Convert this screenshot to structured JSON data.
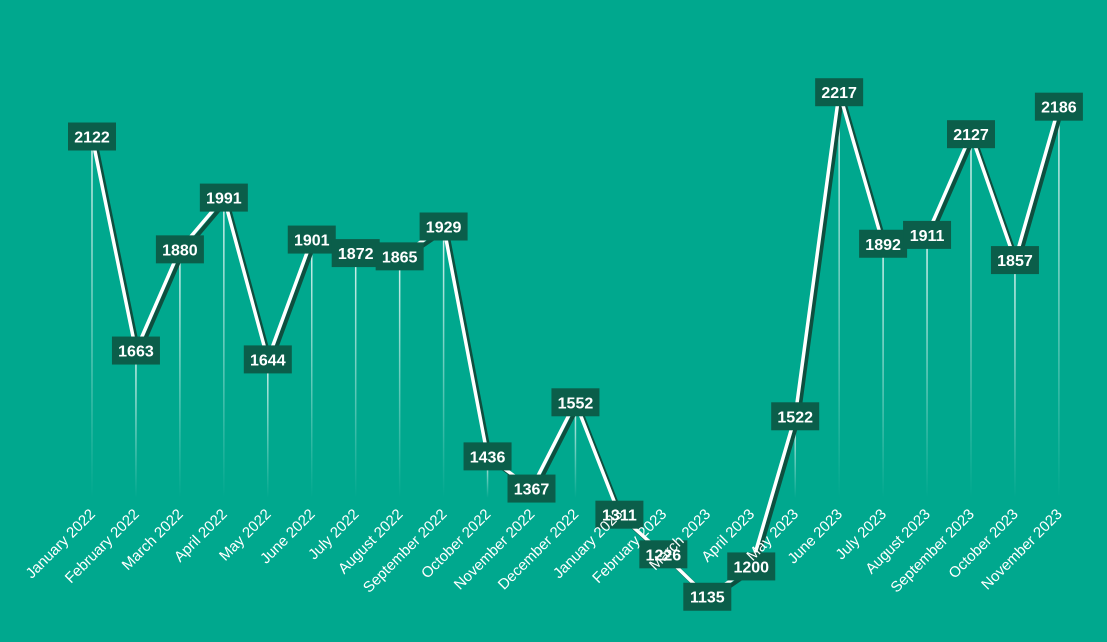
{
  "chart_data": {
    "type": "line",
    "title": "",
    "xlabel": "",
    "ylabel": "",
    "ylim": [
      0,
      2217
    ],
    "grid": false,
    "legend": "none",
    "categories": [
      "January 2022",
      "February 2022",
      "March 2022",
      "April 2022",
      "May 2022",
      "June 2022",
      "July 2022",
      "August 2022",
      "September 2022",
      "October 2022",
      "November 2022",
      "December 2022",
      "January 2023",
      "February 2023",
      "March 2023",
      "April 2023",
      "May 2023",
      "June 2023",
      "July 2023",
      "August 2023",
      "September 2023",
      "October 2023",
      "November 2023"
    ],
    "series": [
      {
        "values": [
          2122,
          1663,
          1880,
          1991,
          1644,
          1901,
          1872,
          1865,
          1929,
          1436,
          1367,
          1552,
          1311,
          1226,
          1135,
          1200,
          1522,
          2217,
          1892,
          1911,
          2127,
          1857,
          2186
        ]
      }
    ]
  },
  "colors": {
    "background": "#00a88e",
    "line": "#ffffff",
    "shadow": "#0e4f3f",
    "label_fill": "#0b5e4a",
    "label_text": "#ffffff",
    "drop_line": "#ffffff"
  }
}
